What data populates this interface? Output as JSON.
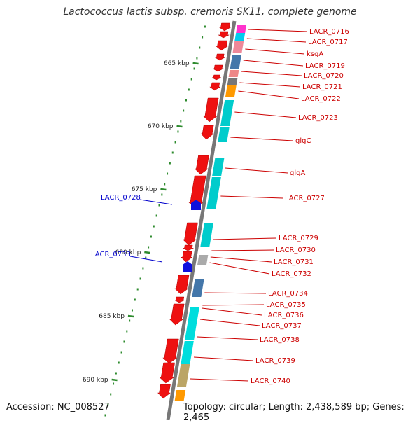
{
  "title": "Lactococcus lactis subsp. cremoris SK11, complete genome",
  "accession": "Accession: NC_008527",
  "topology": "Topology: circular; Length: 2,438,589 bp; Genes: 2,465",
  "colors": {
    "ruler": "#777777",
    "tick": "#2e8b2e",
    "forward_gene": "#ee1111",
    "blue_feature": "#1010dd",
    "gene_label": "#cc0000",
    "blue_label": "#0000cc"
  },
  "scale_ticks": [
    "665 kbp",
    "670 kbp",
    "675 kbp",
    "680 kbp",
    "685 kbp",
    "690 kbp"
  ],
  "gene_labels": [
    "LACR_0716",
    "LACR_0717",
    "ksgA",
    "LACR_0719",
    "LACR_0720",
    "LACR_0721",
    "LACR_0722",
    "LACR_0723",
    "glgC",
    "glgA",
    "LACR_0727",
    "LACR_0729",
    "LACR_0730",
    "LACR_0731",
    "LACR_0732",
    "LACR_0734",
    "LACR_0735",
    "LACR_0736",
    "LACR_0737",
    "LACR_0738",
    "LACR_0739",
    "LACR_0740"
  ],
  "blue_labels": [
    "LACR_0728",
    "LACR_0733"
  ],
  "cog_colors": [
    "#ff33cc",
    "#00ccee",
    "#ee8899",
    "#4477aa",
    "#ee8888",
    "#777777",
    "#ff9900",
    "#00cccc",
    "#00cccc",
    "#00cccc",
    "#00cccc",
    "#00cccc",
    "#aaaaaa",
    "#4477aa",
    "#00dddd",
    "#00dddd",
    "#bba566",
    "#ff9900"
  ]
}
